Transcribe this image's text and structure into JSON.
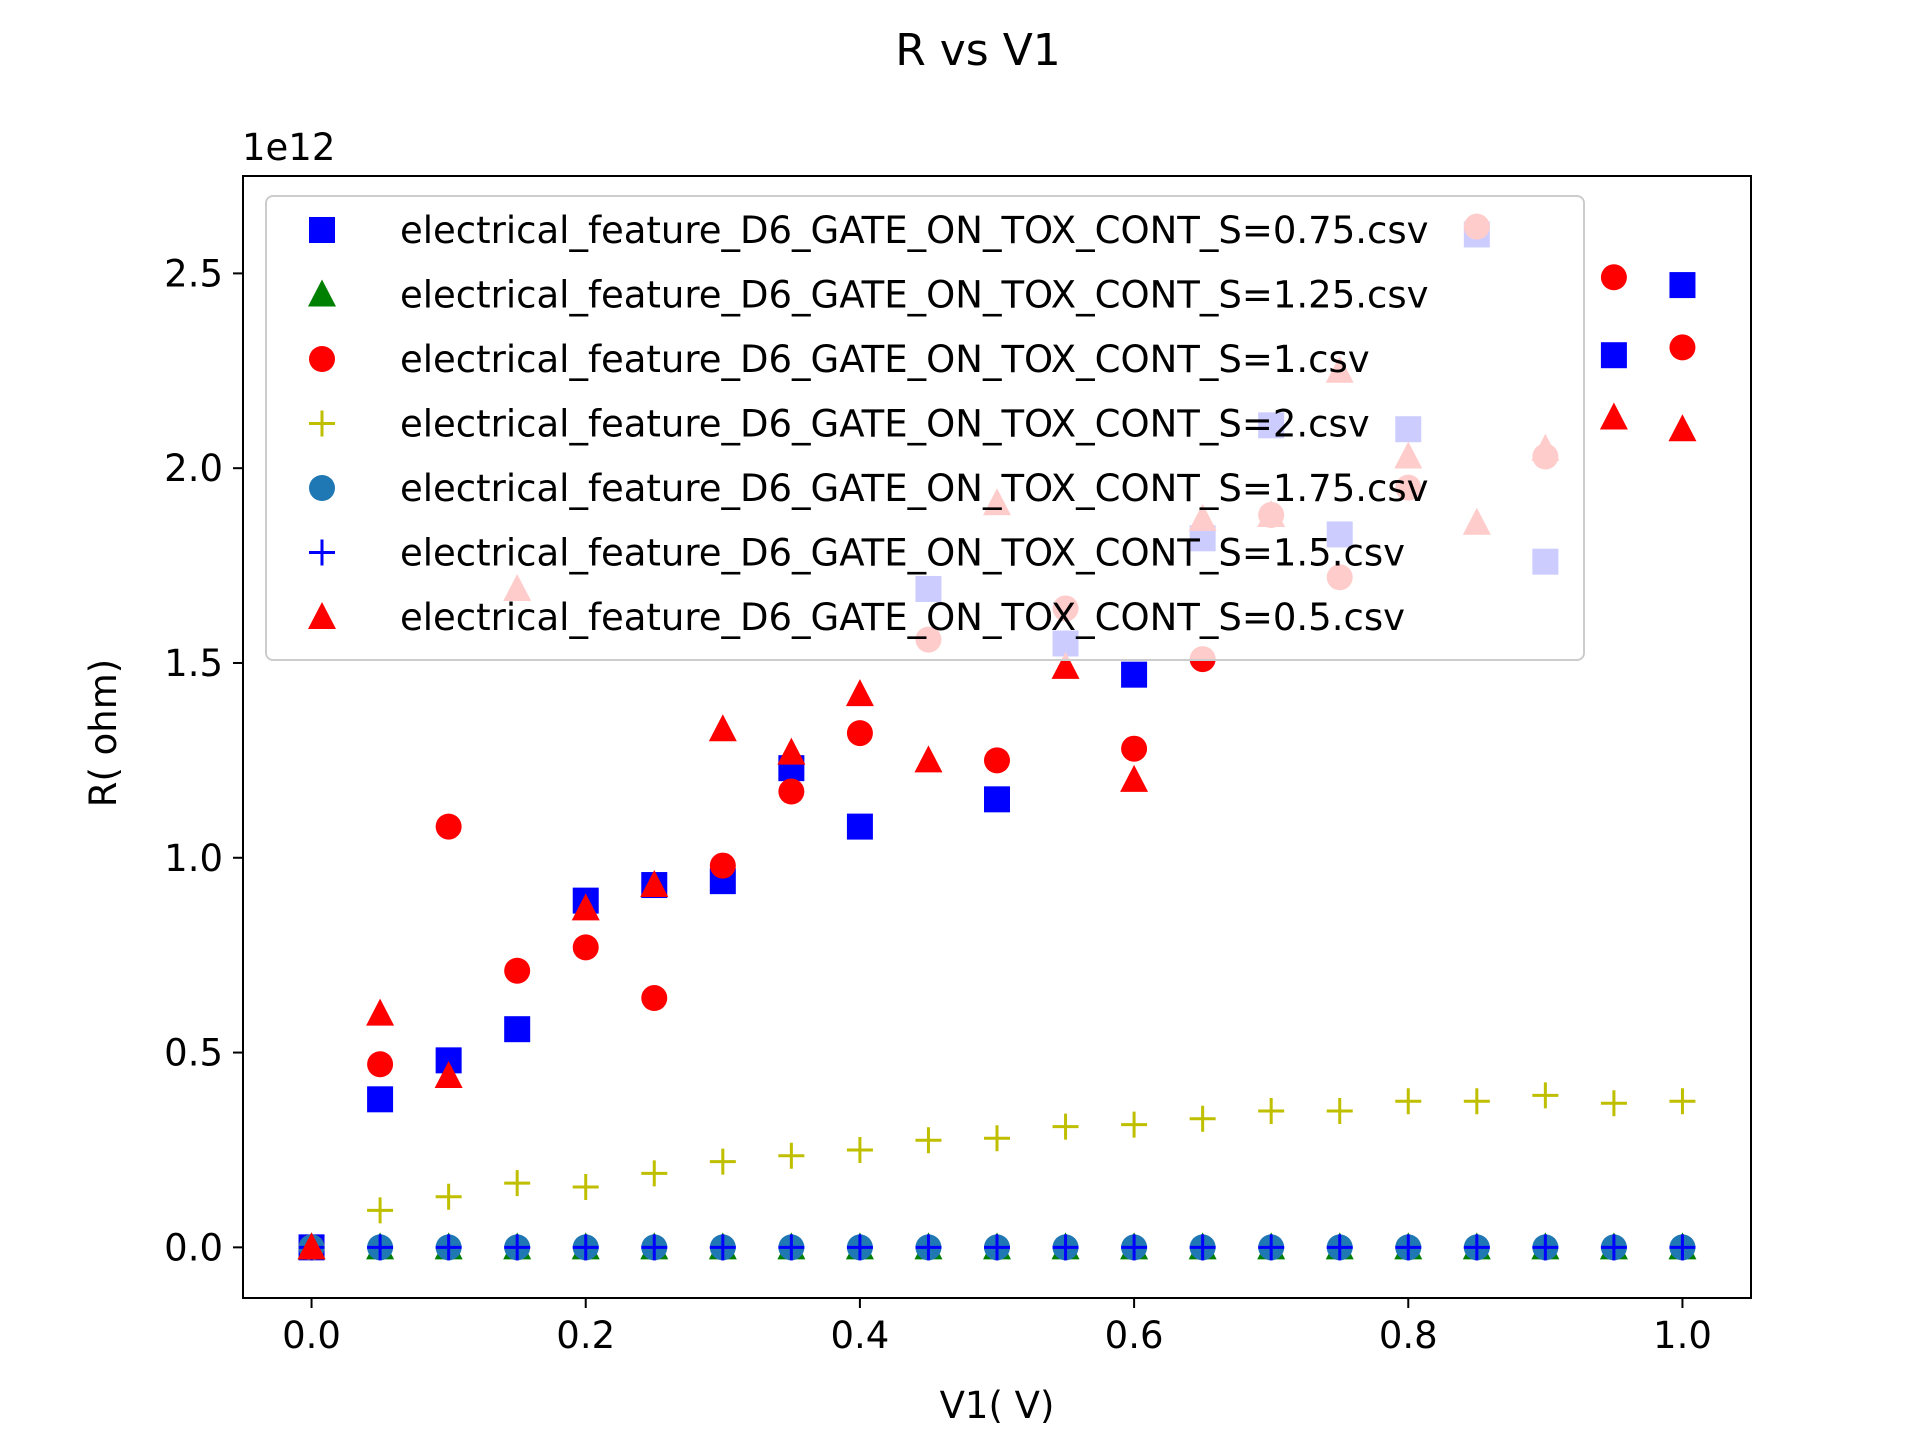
{
  "chart_data": {
    "type": "scatter",
    "title": "R vs V1",
    "xlabel": "V1( V)",
    "ylabel": "R( ohm)",
    "y_offset_label": "1e12",
    "y_multiplier": 1000000000000.0,
    "xlim": [
      -0.05,
      1.05
    ],
    "ylim": [
      -0.13,
      2.75
    ],
    "x_ticks": [
      0.0,
      0.2,
      0.4,
      0.6,
      0.8,
      1.0
    ],
    "x_tick_labels": [
      "0.0",
      "0.2",
      "0.4",
      "0.6",
      "0.8",
      "1.0"
    ],
    "y_ticks": [
      0.0,
      0.5,
      1.0,
      1.5,
      2.0,
      2.5
    ],
    "y_tick_labels": [
      "0.0",
      "0.5",
      "1.0",
      "1.5",
      "2.0",
      "2.5"
    ],
    "grid": false,
    "legend_position": "top",
    "x": [
      0.0,
      0.05,
      0.1,
      0.15,
      0.2,
      0.25,
      0.3,
      0.35,
      0.4,
      0.45,
      0.5,
      0.55,
      0.6,
      0.65,
      0.7,
      0.75,
      0.8,
      0.85,
      0.9,
      0.95,
      1.0
    ],
    "series": [
      {
        "name": "electrical_feature_D6_GATE_ON_TOX_CONT_S=0.75.csv",
        "marker": "square",
        "color": "#0000ff",
        "values": [
          0.0,
          0.38,
          0.48,
          0.56,
          0.89,
          0.93,
          0.94,
          1.23,
          1.08,
          1.69,
          1.15,
          1.55,
          1.47,
          1.82,
          2.11,
          1.83,
          2.1,
          2.6,
          1.76,
          2.29,
          2.47
        ]
      },
      {
        "name": "electrical_feature_D6_GATE_ON_TOX_CONT_S=1.25.csv",
        "marker": "triangle",
        "color": "#008000",
        "values": [
          0.0,
          0.0,
          0.0,
          0.0,
          0.0,
          0.0,
          0.0,
          0.0,
          0.0,
          0.0,
          0.0,
          0.0,
          0.0,
          0.0,
          0.0,
          0.0,
          0.0,
          0.0,
          0.0,
          0.0,
          0.0
        ]
      },
      {
        "name": "electrical_feature_D6_GATE_ON_TOX_CONT_S=1.csv",
        "marker": "circle",
        "color": "#ff0000",
        "values": [
          0.0,
          0.47,
          1.08,
          0.71,
          0.77,
          0.64,
          0.98,
          1.17,
          1.32,
          1.56,
          1.25,
          1.64,
          1.28,
          1.51,
          1.88,
          1.72,
          1.95,
          2.62,
          2.03,
          2.49,
          2.31
        ]
      },
      {
        "name": "electrical_feature_D6_GATE_ON_TOX_CONT_S=2.csv",
        "marker": "plus",
        "color": "#bfbf00",
        "values": [
          0.0,
          0.095,
          0.13,
          0.165,
          0.155,
          0.19,
          0.22,
          0.235,
          0.25,
          0.275,
          0.28,
          0.31,
          0.315,
          0.33,
          0.35,
          0.35,
          0.375,
          0.375,
          0.39,
          0.37,
          0.375
        ]
      },
      {
        "name": "electrical_feature_D6_GATE_ON_TOX_CONT_S=1.75.csv",
        "marker": "circle",
        "color": "#1f77b4",
        "values": [
          0.0,
          0.0,
          0.0,
          0.0,
          0.0,
          0.0,
          0.0,
          0.0,
          0.0,
          0.0,
          0.0,
          0.0,
          0.0,
          0.0,
          0.0,
          0.0,
          0.0,
          0.0,
          0.0,
          0.0,
          0.0
        ]
      },
      {
        "name": "electrical_feature_D6_GATE_ON_TOX_CONT_S=1.5.csv",
        "marker": "plus",
        "color": "#0000ff",
        "values": [
          0.0,
          0.0,
          0.0,
          0.0,
          0.0,
          0.0,
          0.0,
          0.0,
          0.0,
          0.0,
          0.0,
          0.0,
          0.0,
          0.0,
          0.0,
          0.0,
          0.0,
          0.0,
          0.0,
          0.0,
          0.0
        ]
      },
      {
        "name": "electrical_feature_D6_GATE_ON_TOX_CONT_S=0.5.csv",
        "marker": "triangle",
        "color": "#ff0000",
        "values": [
          0.0,
          0.6,
          0.44,
          1.69,
          0.87,
          0.93,
          1.33,
          1.27,
          1.42,
          1.25,
          1.91,
          1.49,
          1.2,
          1.87,
          1.88,
          2.25,
          2.03,
          1.86,
          2.05,
          2.13,
          2.1
        ]
      }
    ]
  }
}
